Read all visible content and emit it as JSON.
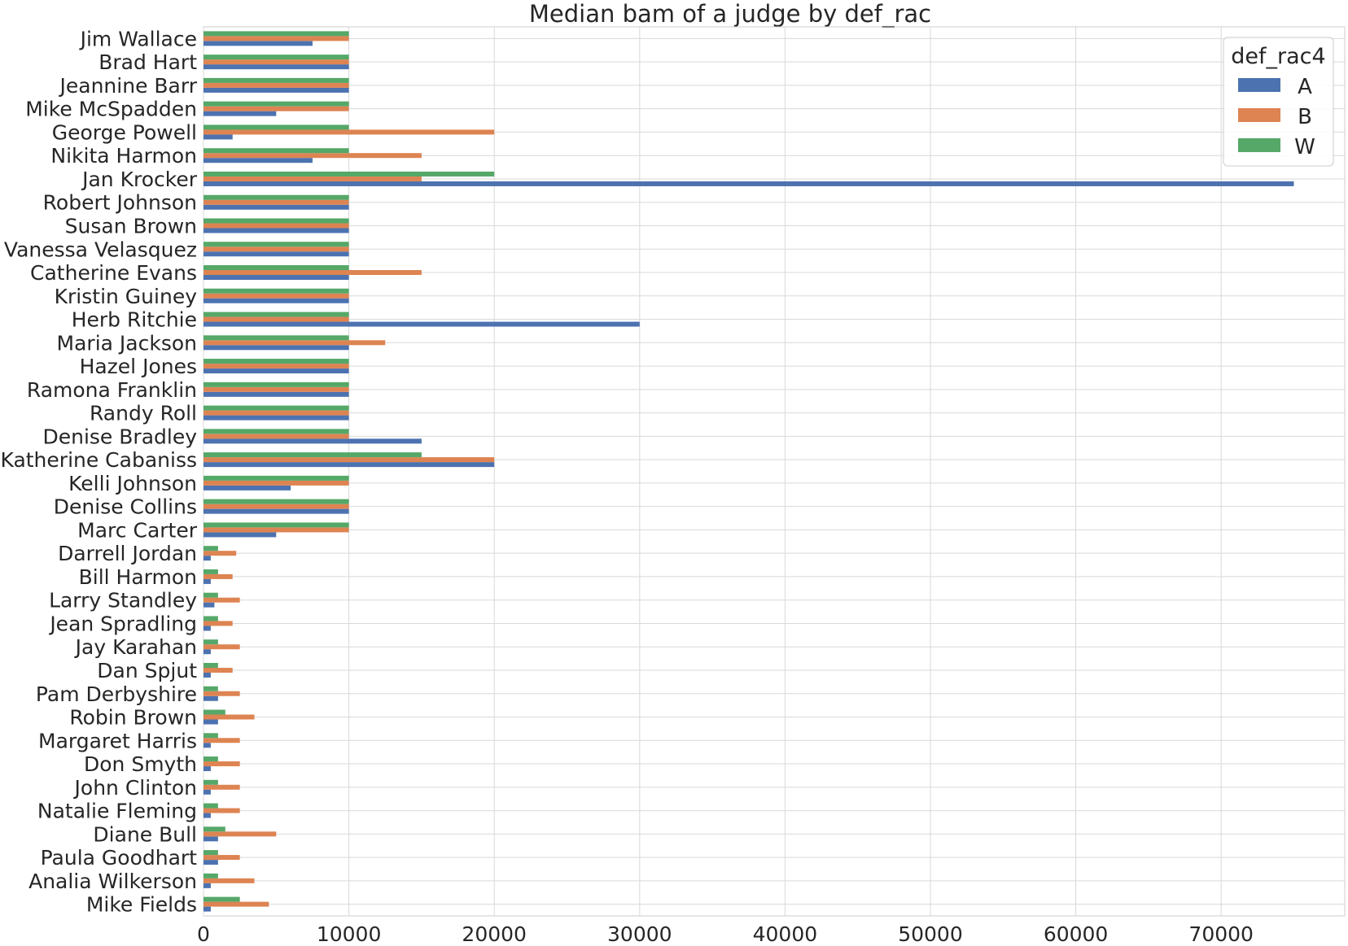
{
  "chart_data": {
    "type": "bar",
    "orientation": "horizontal",
    "title": "Median bam of a judge by def_rac",
    "xlabel": "",
    "ylabel": "",
    "xlim": [
      0,
      78500
    ],
    "x_ticks": [
      0,
      10000,
      20000,
      30000,
      40000,
      50000,
      60000,
      70000
    ],
    "grid": true,
    "legend": {
      "title": "def_rac4",
      "placement": "top-right"
    },
    "categories": [
      "Jim Wallace",
      "Brad Hart",
      "Jeannine Barr",
      "Mike McSpadden",
      "George Powell",
      "Nikita Harmon",
      "Jan Krocker",
      "Robert Johnson",
      "Susan Brown",
      "Vanessa Velasquez",
      "Catherine Evans",
      "Kristin Guiney",
      "Herb Ritchie",
      "Maria Jackson",
      "Hazel Jones",
      "Ramona Franklin",
      "Randy Roll",
      "Denise Bradley",
      "Katherine Cabaniss",
      "Kelli Johnson",
      "Denise Collins",
      "Marc Carter",
      "Darrell Jordan",
      "Bill Harmon",
      "Larry Standley",
      "Jean Spradling",
      "Jay Karahan",
      "Dan Spjut",
      "Pam Derbyshire",
      "Robin Brown",
      "Margaret Harris",
      "Don Smyth",
      "John Clinton",
      "Natalie Fleming",
      "Diane Bull",
      "Paula Goodhart",
      "Analia Wilkerson",
      "Mike Fields"
    ],
    "series": [
      {
        "name": "A",
        "color": "#4c72b0",
        "values": [
          7500,
          10000,
          10000,
          5000,
          2000,
          7500,
          75000,
          10000,
          10000,
          10000,
          10000,
          10000,
          30000,
          10000,
          10000,
          10000,
          10000,
          15000,
          20000,
          6000,
          10000,
          5000,
          500,
          500,
          750,
          500,
          500,
          500,
          1000,
          1000,
          500,
          500,
          500,
          500,
          1000,
          1000,
          500,
          500
        ]
      },
      {
        "name": "B",
        "color": "#dd8452",
        "values": [
          10000,
          10000,
          10000,
          10000,
          20000,
          15000,
          15000,
          10000,
          10000,
          10000,
          15000,
          10000,
          10000,
          12500,
          10000,
          10000,
          10000,
          10000,
          20000,
          10000,
          10000,
          10000,
          2250,
          2000,
          2500,
          2000,
          2500,
          2000,
          2500,
          3500,
          2500,
          2500,
          2500,
          2500,
          5000,
          2500,
          3500,
          4500
        ]
      },
      {
        "name": "W",
        "color": "#55a868",
        "values": [
          10000,
          10000,
          10000,
          10000,
          10000,
          10000,
          20000,
          10000,
          10000,
          10000,
          10000,
          10000,
          10000,
          10000,
          10000,
          10000,
          10000,
          10000,
          15000,
          10000,
          10000,
          10000,
          1000,
          1000,
          1000,
          1000,
          1000,
          1000,
          1000,
          1500,
          1000,
          1000,
          1000,
          1000,
          1500,
          1000,
          1000,
          2500
        ]
      }
    ]
  }
}
